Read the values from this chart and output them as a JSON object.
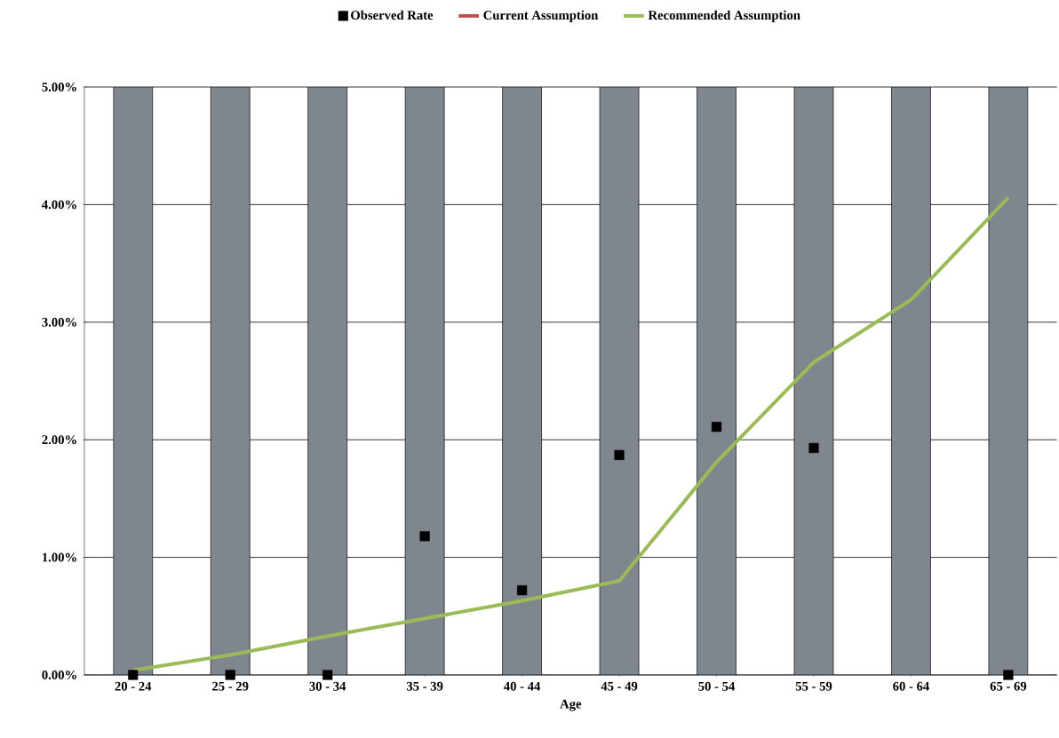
{
  "chart_data": {
    "type": "line",
    "xlabel": "Age",
    "categories": [
      "20 - 24",
      "25 - 29",
      "30 - 34",
      "35 - 39",
      "40 - 44",
      "45 - 49",
      "50 - 54",
      "55 - 59",
      "60 - 64",
      "65 - 69"
    ],
    "ylim": [
      0,
      5
    ],
    "yticks": [
      {
        "value": 0,
        "label": "0.00%"
      },
      {
        "value": 1,
        "label": "1.00%"
      },
      {
        "value": 2,
        "label": "2.00%"
      },
      {
        "value": 3,
        "label": "3.00%"
      },
      {
        "value": 4,
        "label": "4.00%"
      },
      {
        "value": 5,
        "label": "5.00%"
      }
    ],
    "grid": "y",
    "legend": "top",
    "series": [
      {
        "type": "bar",
        "color": "#7f868e",
        "values": [
          5,
          5,
          5,
          5,
          5,
          5,
          5,
          5,
          5,
          5
        ]
      },
      {
        "name": "Observed Rate",
        "type": "scatter",
        "marker": "square",
        "color": "#000000",
        "values": [
          0,
          0,
          0,
          1.18,
          0.72,
          1.87,
          2.11,
          1.93,
          null,
          0
        ]
      },
      {
        "name": "Current Assumption",
        "color": "#c0504d",
        "values": [
          null,
          null,
          null,
          null,
          null,
          null,
          null,
          null,
          null,
          null
        ]
      },
      {
        "name": "Recommended Assumption",
        "color": "#9bbb59",
        "values": [
          0.04,
          0.17,
          0.33,
          0.48,
          0.63,
          0.8,
          1.81,
          2.66,
          3.19,
          4.06
        ]
      }
    ]
  }
}
